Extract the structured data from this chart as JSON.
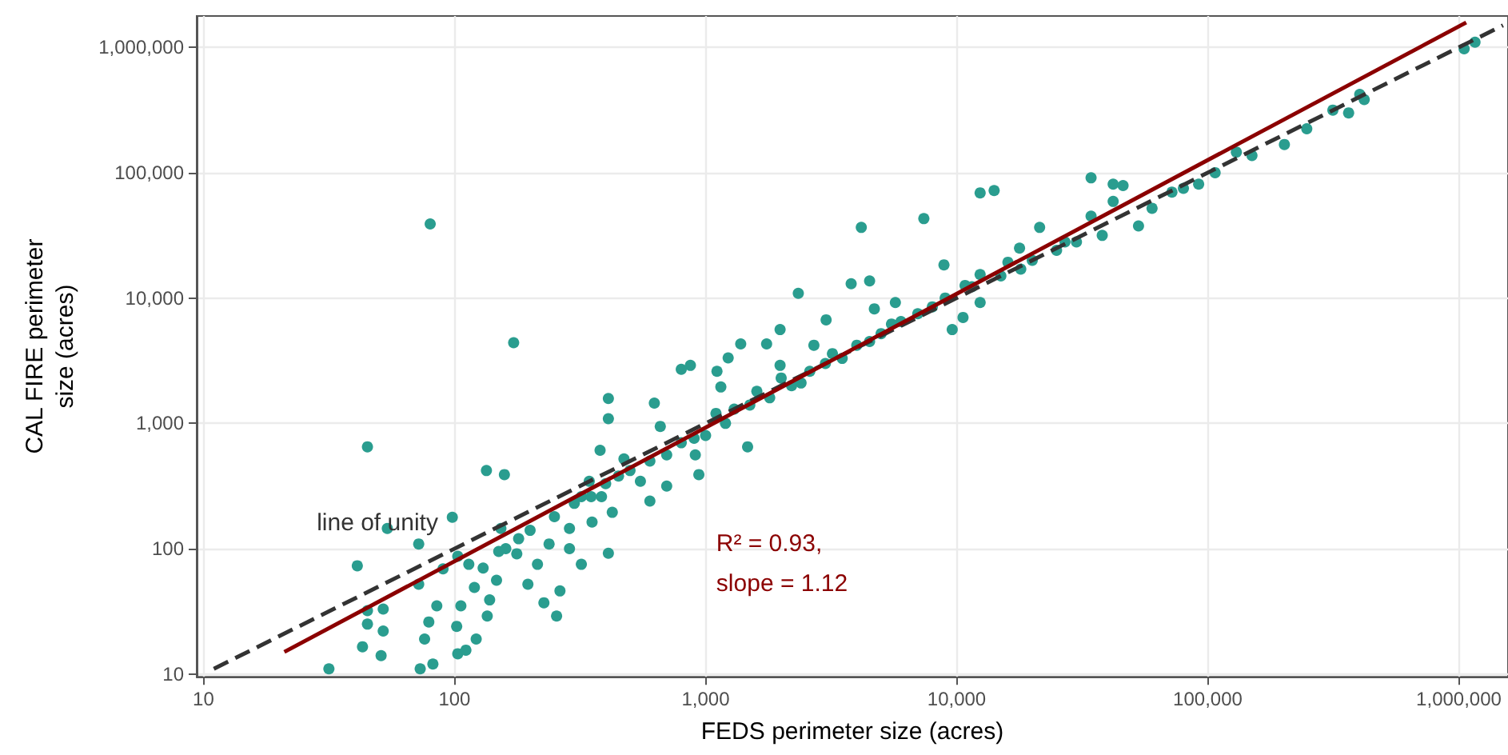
{
  "chart_data": {
    "type": "scatter",
    "xlabel": "FEDS perimeter size (acres)",
    "ylabel": "CAL FIRE perimeter size (acres)",
    "log": "xy",
    "grid": true,
    "marker": "circle",
    "xlim": [
      9.4,
      1570000
    ],
    "ylim": [
      9.5,
      1780000
    ],
    "xticks": [
      10,
      100,
      {
        "value": 1000,
        "label": "1,000"
      },
      {
        "value": 10000,
        "label": "10,000"
      },
      {
        "value": 100000,
        "label": "100,000"
      },
      {
        "value": 1000000,
        "label": "1,000,000"
      }
    ],
    "yticks": [
      10,
      100,
      {
        "value": 1000,
        "label": "1,000"
      },
      {
        "value": 10000,
        "label": "10,000"
      },
      {
        "value": 100000,
        "label": "100,000"
      },
      {
        "value": 1000000,
        "label": "1,000,000"
      }
    ],
    "annotations": [
      "line of unity",
      "R² = 0.93,",
      "slope = 1.12"
    ],
    "series": [
      {
        "color": "#2a9d8f",
        "x": [
          80,
          172,
          45,
          134,
          158,
          54,
          72,
          98,
          41,
          90,
          72,
          45,
          52,
          45,
          52,
          43,
          51,
          31.6,
          73,
          82,
          79,
          76,
          85,
          103,
          114,
          120,
          106,
          102,
          103,
          111,
          122,
          135,
          138,
          147,
          160,
          153,
          177,
          196,
          227,
          255,
          263,
          214,
          238,
          287,
          320,
          320,
          344,
          380,
          410,
          410,
          625,
          410,
          385,
          473,
          550,
          600,
          425,
          353,
          287,
          660,
          870,
          800,
          1230,
          1380,
          1750,
          1980,
          2340,
          3020,
          3800,
          4170,
          4500,
          7400,
          12400,
          14100,
          8900,
          21400,
          17800,
          1470,
          1150,
          1110,
          1980,
          2700,
          4700,
          5700,
          9600,
          10800,
          910,
          700,
          940,
          34300,
          42000,
          46000,
          34300,
          42000,
          53000,
          130000,
          150000,
          202000,
          248000,
          315000,
          364000,
          403000,
          420000,
          1050000,
          1160000,
          107000,
          92000,
          72000,
          11500,
          12400,
          16000,
          27000,
          38000,
          60000,
          80000,
          10600,
          12400,
          1000,
          1200,
          1500,
          1800,
          2200,
          2600,
          3000,
          3500,
          4000,
          5000,
          6000,
          7000,
          8000,
          9000,
          1300,
          1600,
          2000,
          500,
          600,
          700,
          800,
          900,
          250,
          300,
          350,
          400,
          450,
          200,
          180,
          150,
          130,
          1100,
          2400,
          3200,
          4500,
          5500,
          20000,
          25000,
          30000,
          15000,
          18000
        ],
        "values": [
          39000,
          4400,
          650,
          420,
          390,
          145,
          109,
          178,
          73,
          69,
          52,
          32,
          33,
          25,
          22,
          16.5,
          14,
          11,
          11,
          12,
          26,
          19,
          35,
          87,
          75,
          49,
          35,
          24,
          14.5,
          15.5,
          19,
          29,
          39,
          56,
          100,
          145,
          91,
          52,
          37,
          29,
          46,
          75,
          109,
          145,
          75,
          260,
          345,
          610,
          1090,
          1580,
          1450,
          92,
          260,
          520,
          345,
          240,
          195,
          163,
          100,
          945,
          2900,
          2700,
          3330,
          4300,
          4300,
          5600,
          10900,
          6700,
          13000,
          36600,
          13700,
          43000,
          69000,
          72000,
          18400,
          36600,
          25000,
          650,
          1950,
          2600,
          2900,
          4200,
          8200,
          9200,
          5600,
          12600,
          560,
          316,
          390,
          91000,
          81000,
          79000,
          45000,
          59000,
          37600,
          146000,
          137000,
          168000,
          224000,
          316000,
          300000,
          422000,
          383000,
          975000,
          1100000,
          100000,
          81000,
          70000,
          12300,
          9200,
          19300,
          28000,
          31600,
          52000,
          75000,
          7000,
          15400,
          800,
          1000,
          1400,
          1600,
          2000,
          2600,
          3000,
          3300,
          4200,
          5200,
          6500,
          7500,
          8500,
          10000,
          1300,
          1800,
          2300,
          420,
          500,
          560,
          700,
          760,
          180,
          230,
          260,
          330,
          380,
          140,
          120,
          95,
          70,
          1200,
          2100,
          3600,
          4500,
          6200,
          20000,
          24000,
          28000,
          15000,
          17000
        ]
      },
      {
        "type": "line",
        "marker": "none",
        "color": "#333333",
        "line_style": "dashed",
        "x": [
          11,
          1500000
        ],
        "values": [
          11,
          1500000
        ]
      },
      {
        "type": "line",
        "marker": "none",
        "color": "#8b0000",
        "line_style": "solid",
        "x": [
          21,
          1070000
        ],
        "values": [
          15,
          1580000
        ]
      }
    ]
  }
}
